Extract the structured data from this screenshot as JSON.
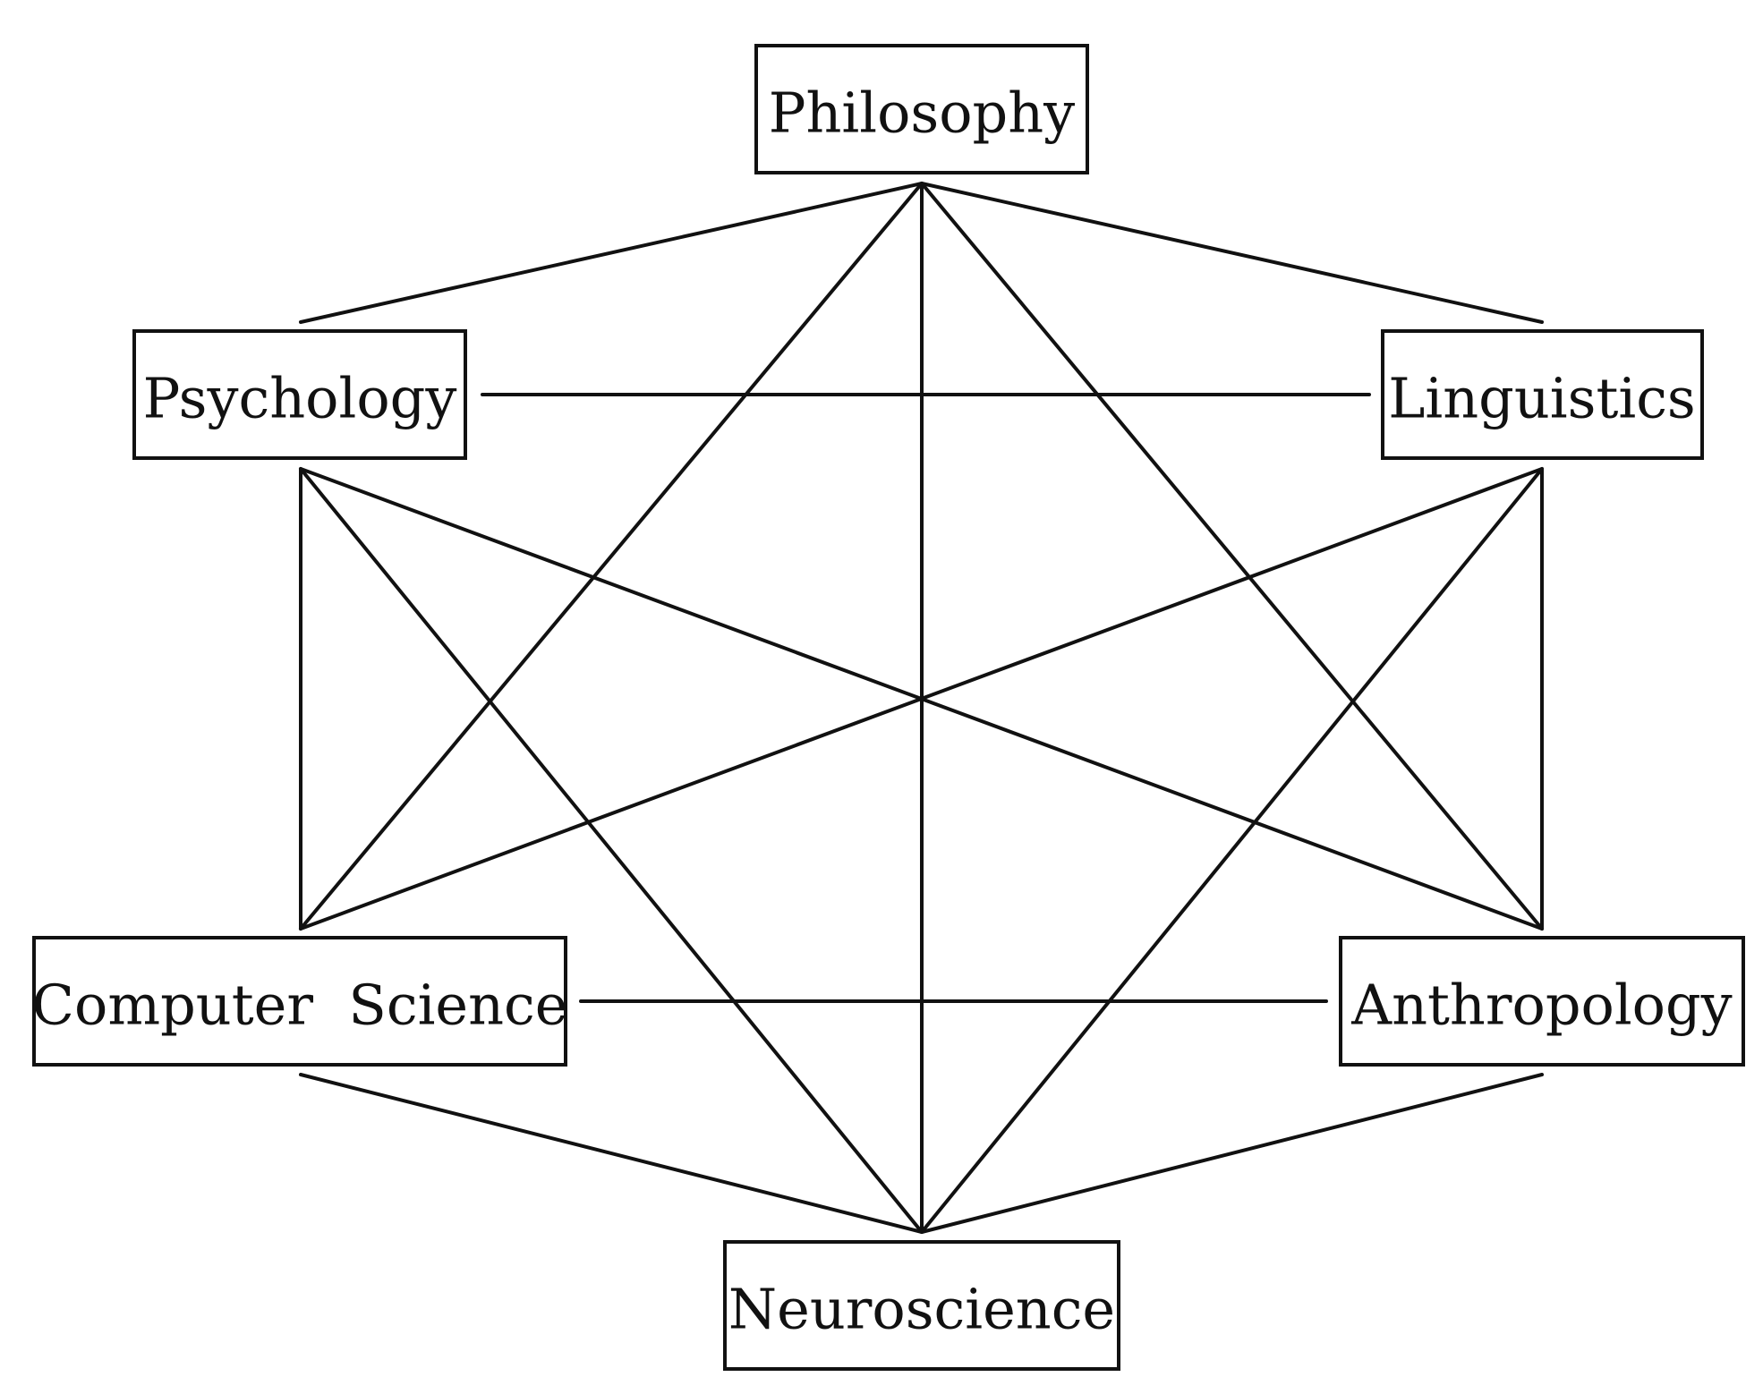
{
  "nodes": {
    "philosophy": {
      "label": "Philosophy"
    },
    "psychology": {
      "label": "Psychology"
    },
    "linguistics": {
      "label": "Linguistics"
    },
    "computer_science": {
      "label": "Computer  Science"
    },
    "anthropology": {
      "label": "Anthropology"
    },
    "neuroscience": {
      "label": "Neuroscience"
    }
  },
  "edges": [
    [
      "philosophy",
      "psychology"
    ],
    [
      "philosophy",
      "linguistics"
    ],
    [
      "philosophy",
      "computer_science"
    ],
    [
      "philosophy",
      "anthropology"
    ],
    [
      "philosophy",
      "neuroscience"
    ],
    [
      "psychology",
      "linguistics"
    ],
    [
      "psychology",
      "computer_science"
    ],
    [
      "psychology",
      "anthropology"
    ],
    [
      "psychology",
      "neuroscience"
    ],
    [
      "linguistics",
      "computer_science"
    ],
    [
      "linguistics",
      "anthropology"
    ],
    [
      "linguistics",
      "neuroscience"
    ],
    [
      "computer_science",
      "anthropology"
    ],
    [
      "computer_science",
      "neuroscience"
    ],
    [
      "anthropology",
      "neuroscience"
    ]
  ],
  "colors": {
    "stroke": "#111111",
    "background": "#ffffff"
  }
}
